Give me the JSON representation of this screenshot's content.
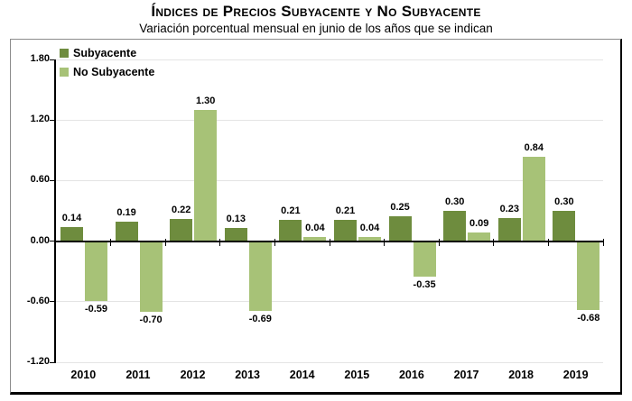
{
  "title": "Índices de Precios Subyacente y No Subyacente",
  "subtitle": "Variación porcentual mensual en junio de los años que se indican",
  "legend": {
    "items": [
      "Subyacente",
      "No Subyacente"
    ]
  },
  "colors": {
    "subyacente": "#6e8c3e",
    "no_subyacente": "#a7c277",
    "gridline": "#e4e4e4",
    "axis": "#000000"
  },
  "chart_data": {
    "type": "bar",
    "title": "Índices de Precios Subyacente y No Subyacente",
    "subtitle": "Variación porcentual mensual en junio de los años que se indican",
    "categories": [
      "2010",
      "2011",
      "2012",
      "2013",
      "2014",
      "2015",
      "2016",
      "2017",
      "2018",
      "2019"
    ],
    "series": [
      {
        "name": "Subyacente",
        "color": "#6e8c3e",
        "values": [
          0.14,
          0.19,
          0.22,
          0.13,
          0.21,
          0.21,
          0.25,
          0.3,
          0.23,
          0.3
        ]
      },
      {
        "name": "No Subyacente",
        "color": "#a7c277",
        "values": [
          -0.59,
          -0.7,
          1.3,
          -0.69,
          0.04,
          0.04,
          -0.35,
          0.09,
          0.84,
          -0.68
        ]
      }
    ],
    "value_labels": [
      [
        "0.14",
        "0.19",
        "0.22",
        "0.13",
        "0.21",
        "0.21",
        "0.25",
        "0.30",
        "0.23",
        "0.30"
      ],
      [
        "-0.59",
        "-0.70",
        "1.30",
        "-0.69",
        "0.04",
        "0.04",
        "-0.35",
        "0.09",
        "0.84",
        "-0.68"
      ]
    ],
    "ylim": [
      -1.2,
      1.8
    ],
    "yticks": [
      1.8,
      1.2,
      0.6,
      0.0,
      -0.6,
      -1.2
    ],
    "ytick_labels": [
      "1.80",
      "1.20",
      "0.60",
      "0.00",
      "-0.60",
      "-1.20"
    ],
    "grid": true,
    "legend_position": "top-left"
  }
}
